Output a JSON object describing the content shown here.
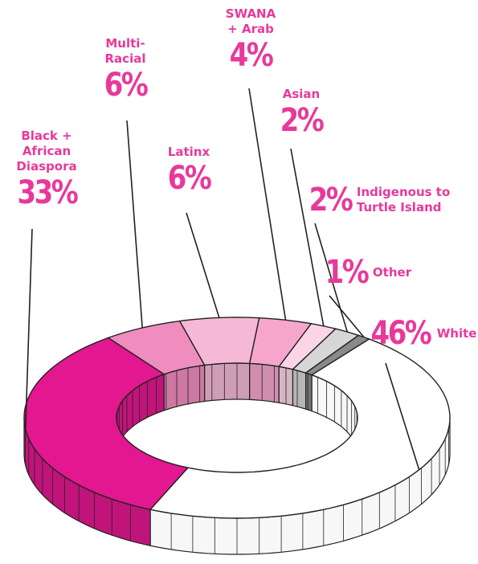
{
  "chart_data": {
    "type": "pie",
    "categories": [
      "Black + African Diaspora",
      "Multi-Racial",
      "Latinx",
      "SWANA + Arab",
      "Asian",
      "Indigenous to Turtle Island",
      "Other",
      "White"
    ],
    "values": [
      33,
      6,
      6,
      4,
      2,
      2,
      1,
      46
    ],
    "value_labels": [
      "33%",
      "6%",
      "6%",
      "4%",
      "2%",
      "2%",
      "1%",
      "46%"
    ],
    "colors": [
      "#e3178f",
      "#f08dbf",
      "#f5b9d7",
      "#f6a6cd",
      "#fbd5e7",
      "#d6d6d6",
      "#8a8a8a",
      "#ffffff"
    ]
  }
}
